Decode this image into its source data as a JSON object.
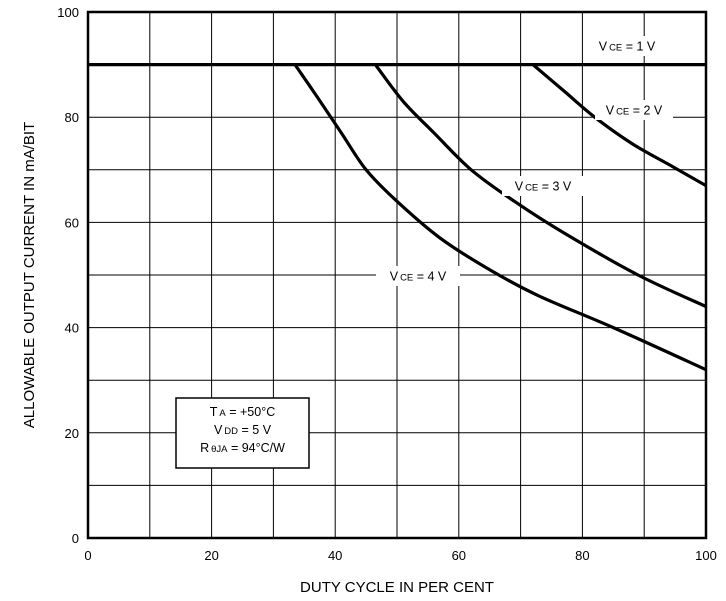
{
  "chart_data": {
    "type": "line",
    "title": "",
    "xlabel": "DUTY CYCLE IN PER CENT",
    "ylabel": "ALLOWABLE OUTPUT CURRENT IN mA/BIT",
    "xlim": [
      0,
      100
    ],
    "ylim": [
      0,
      100
    ],
    "x_ticks": [
      0,
      20,
      40,
      60,
      80,
      100
    ],
    "y_ticks": [
      0,
      20,
      40,
      60,
      80,
      100
    ],
    "x_tick_labels": [
      "0",
      "20",
      "40",
      "60",
      "80",
      "100"
    ],
    "y_tick_labels": [
      "0",
      "20",
      "40",
      "60",
      "80",
      "100"
    ],
    "grid": true,
    "x_grid_step": 10,
    "y_grid_step": 10,
    "series": [
      {
        "name": "VCE = 1 V",
        "label": {
          "main": "V",
          "sub": "CE",
          "rest": " = 1 V"
        },
        "x": [
          0,
          100
        ],
        "y": [
          90,
          90
        ]
      },
      {
        "name": "VCE = 2 V",
        "label": {
          "main": "V",
          "sub": "CE",
          "rest": " = 2 V"
        },
        "x": [
          72,
          77,
          82,
          88,
          94,
          100
        ],
        "y": [
          90,
          85,
          80,
          75,
          71,
          67
        ]
      },
      {
        "name": "VCE = 3 V",
        "label": {
          "main": "V",
          "sub": "CE",
          "rest": " = 3 V"
        },
        "x": [
          46.5,
          51,
          56,
          62,
          69,
          77,
          89,
          100
        ],
        "y": [
          90,
          83,
          77,
          70,
          64,
          58,
          50,
          44
        ]
      },
      {
        "name": "VCE = 4 V",
        "label": {
          "main": "V",
          "sub": "CE",
          "rest": " = 4 V"
        },
        "x": [
          33.5,
          37,
          41,
          45,
          50,
          57,
          65,
          73,
          85,
          100
        ],
        "y": [
          90,
          84,
          77,
          70,
          64,
          57,
          51,
          46,
          40,
          32
        ]
      }
    ],
    "conditions": [
      {
        "main": "T",
        "sub": "A",
        "rest": " = +50°C"
      },
      {
        "main": "V",
        "sub": "DD",
        "rest": " = 5 V"
      },
      {
        "main": "R",
        "sub": "θJA",
        "rest": " = 94°C/W"
      }
    ]
  }
}
